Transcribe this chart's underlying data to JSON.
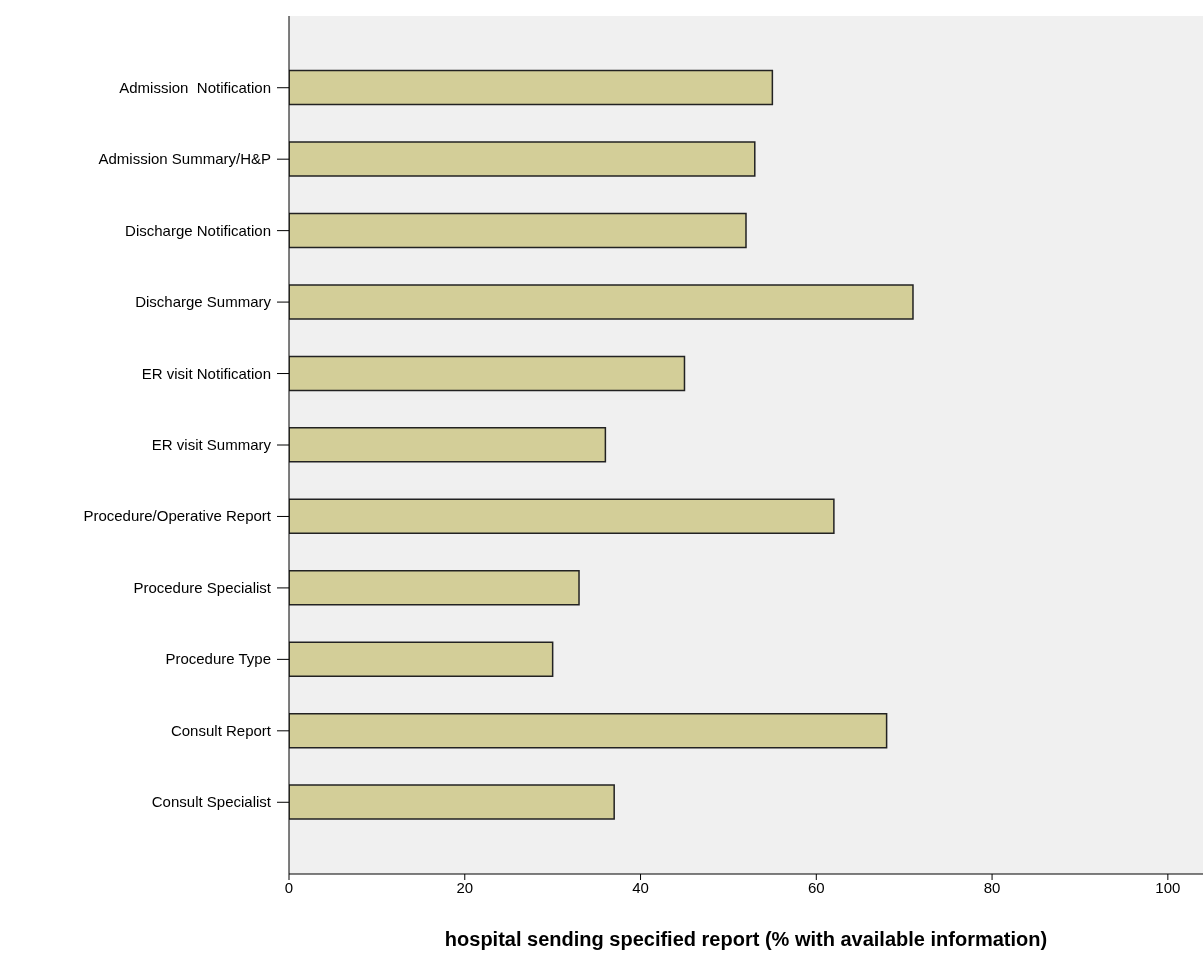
{
  "chart_data": {
    "type": "bar",
    "orientation": "horizontal",
    "xlabel": "hospital sending specified report (% with available information)",
    "categories": [
      "Admission  Notification",
      "Admission Summary/H&P",
      "Discharge Notification",
      "Discharge Summary",
      "ER visit Notification",
      "ER visit Summary",
      "Procedure/Operative Report",
      "Procedure Specialist",
      "Procedure Type",
      "Consult Report",
      "Consult Specialist"
    ],
    "values": [
      55,
      53,
      52,
      71,
      45,
      36,
      62,
      33,
      30,
      68,
      37
    ],
    "color": "#d3ce98",
    "xlim": [
      0,
      104
    ],
    "xticks": [
      0,
      20,
      40,
      60,
      80,
      100
    ],
    "grid": false,
    "legend": false
  }
}
